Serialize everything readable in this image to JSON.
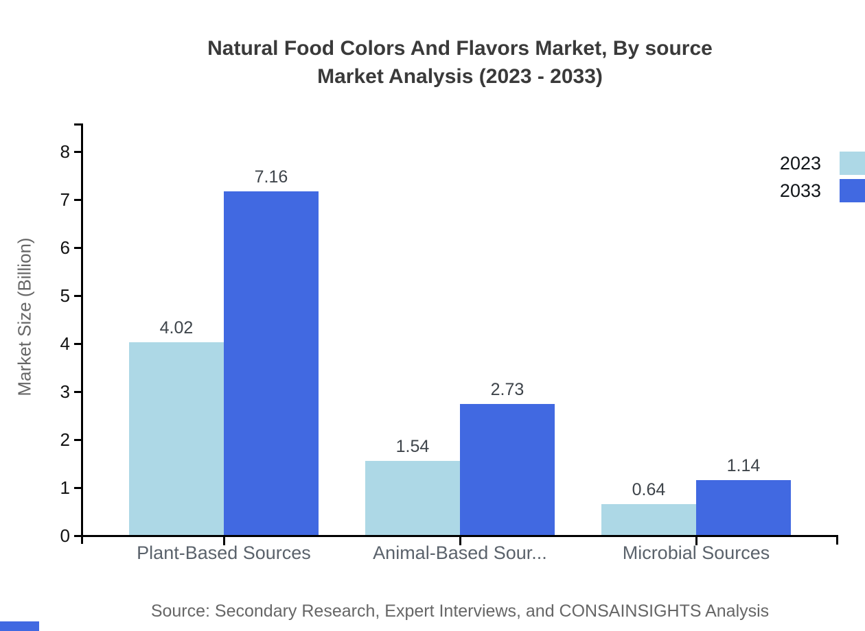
{
  "page": {
    "title_line1": "Natural Food Colors And Flavors Market, By source",
    "title_line2": "Market Analysis (2023 - 2033)",
    "source_note": "Source: Secondary Research, Expert Interviews, and CONSAINSIGHTS Analysis"
  },
  "legend": {
    "items": [
      {
        "label": "2023",
        "color": "#ADD8E6"
      },
      {
        "label": "2033",
        "color": "#4169E1"
      }
    ]
  },
  "colors": {
    "series_2023": "#ADD8E6",
    "series_2033": "#4169E1",
    "axis": "#000000",
    "title_text": "#3a3a3a",
    "muted_text": "#666666",
    "accent_bar": "#4169E1"
  },
  "chart_data": {
    "type": "bar",
    "title": "Natural Food Colors And Flavors Market, By source Market Analysis (2023 - 2033)",
    "categories": [
      "Plant-Based Sources",
      "Animal-Based Sour...",
      "Microbial Sources"
    ],
    "series": [
      {
        "name": "2023",
        "color": "#ADD8E6",
        "values": [
          4.02,
          1.54,
          0.64
        ]
      },
      {
        "name": "2033",
        "color": "#4169E1",
        "values": [
          7.16,
          2.73,
          1.14
        ]
      }
    ],
    "value_labels": [
      "4.02",
      "7.16",
      "1.54",
      "2.73",
      "0.64",
      "1.14"
    ],
    "xlabel": "",
    "ylabel": "Market Size (Billion)",
    "ylim": [
      0,
      8
    ],
    "yticks": [
      0,
      1,
      2,
      3,
      4,
      5,
      6,
      7,
      8
    ],
    "grid": false,
    "legend_position": "top-right",
    "source": "Source: Secondary Research, Expert Interviews, and CONSAINSIGHTS Analysis"
  }
}
